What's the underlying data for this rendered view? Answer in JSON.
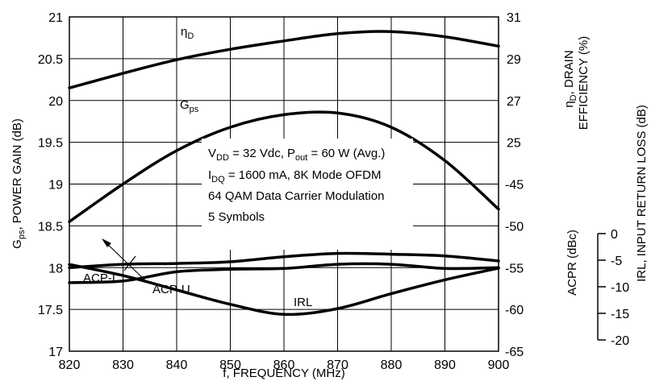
{
  "chart_data": {
    "type": "line",
    "x_axis": {
      "label": "f, FREQUENCY (MHz)",
      "ticks": [
        820,
        830,
        840,
        850,
        860,
        870,
        880,
        890,
        900
      ],
      "range": [
        820,
        900
      ]
    },
    "y_left": {
      "label_prefix": "G",
      "label_sub": "ps",
      "label_suffix": ", POWER GAIN (dB)",
      "ticks": [
        "21",
        "20.5",
        "20",
        "19.5",
        "19",
        "18.5",
        "18",
        "17.5",
        "17"
      ],
      "range": [
        17,
        21
      ]
    },
    "y_right_top": {
      "label_sym": "η",
      "label_sub": "D",
      "label_line1_suffix": ", DRAIN",
      "label_line2": "EFFICIENCY (%)",
      "ticks": [
        "31",
        "29",
        "27",
        "25"
      ],
      "range": [
        23,
        31
      ]
    },
    "y_right_bottom": {
      "label": "ACPR (dBc)",
      "ticks": [
        "-45",
        "-50",
        "-55",
        "-60",
        "-65"
      ],
      "range": [
        -65,
        -40
      ]
    },
    "y_irl": {
      "label": "IRL, INPUT RETURN LOSS (dB)",
      "ticks": [
        "0",
        "-5",
        "-10",
        "-15",
        "-20"
      ],
      "range": [
        -20,
        0
      ]
    },
    "series": [
      {
        "name": "ηD",
        "axis": "y_right_top",
        "label_sym": "η",
        "label_sub": "D",
        "x": [
          820,
          830,
          840,
          850,
          860,
          870,
          880,
          890,
          900
        ],
        "y": [
          27.6,
          28.3,
          28.95,
          29.45,
          29.85,
          30.2,
          30.3,
          30.05,
          29.6
        ]
      },
      {
        "name": "Gps",
        "axis": "y_left",
        "label_sym": "G",
        "label_sub": "ps",
        "x": [
          820,
          830,
          840,
          850,
          860,
          870,
          880,
          890,
          900
        ],
        "y": [
          18.55,
          19.0,
          19.4,
          19.68,
          19.83,
          19.85,
          19.68,
          19.28,
          18.7
        ]
      },
      {
        "name": "IRL",
        "axis": "y_irl",
        "label_sym": "IRL",
        "label_sub": "",
        "x": [
          820,
          830,
          840,
          850,
          860,
          870,
          880,
          890,
          900
        ],
        "y": [
          -5.8,
          -7.9,
          -10.6,
          -13.3,
          -15.2,
          -14.1,
          -11.3,
          -8.7,
          -6.5
        ]
      },
      {
        "name": "ACP-U",
        "axis": "y_right_bottom",
        "label_sym": "ACP-U",
        "label_sub": "",
        "x": [
          820,
          830,
          840,
          850,
          860,
          870,
          880,
          890,
          900
        ],
        "y": [
          -55.0,
          -54.6,
          -54.5,
          -54.3,
          -53.7,
          -53.3,
          -53.4,
          -53.6,
          -54.2
        ]
      },
      {
        "name": "ACP-L",
        "axis": "y_right_bottom",
        "label_sym": "ACP-L",
        "label_sub": "",
        "x": [
          820,
          830,
          840,
          850,
          860,
          870,
          880,
          890,
          900
        ],
        "y": [
          -56.8,
          -56.6,
          -55.5,
          -55.2,
          -55.1,
          -54.6,
          -54.6,
          -55.1,
          -55.0
        ]
      }
    ],
    "annotation": {
      "line1_a": "V",
      "line1_a_sub": "DD",
      "line1_b": " = 32 Vdc, P",
      "line1_b_sub": "out",
      "line1_c": " = 60 W (Avg.)",
      "line2_a": "I",
      "line2_a_sub": "DQ",
      "line2_b": " = 1600 mA, 8K Mode OFDM",
      "line3": "64 QAM Data Carrier Modulation",
      "line4": "5 Symbols"
    },
    "grid": true
  }
}
